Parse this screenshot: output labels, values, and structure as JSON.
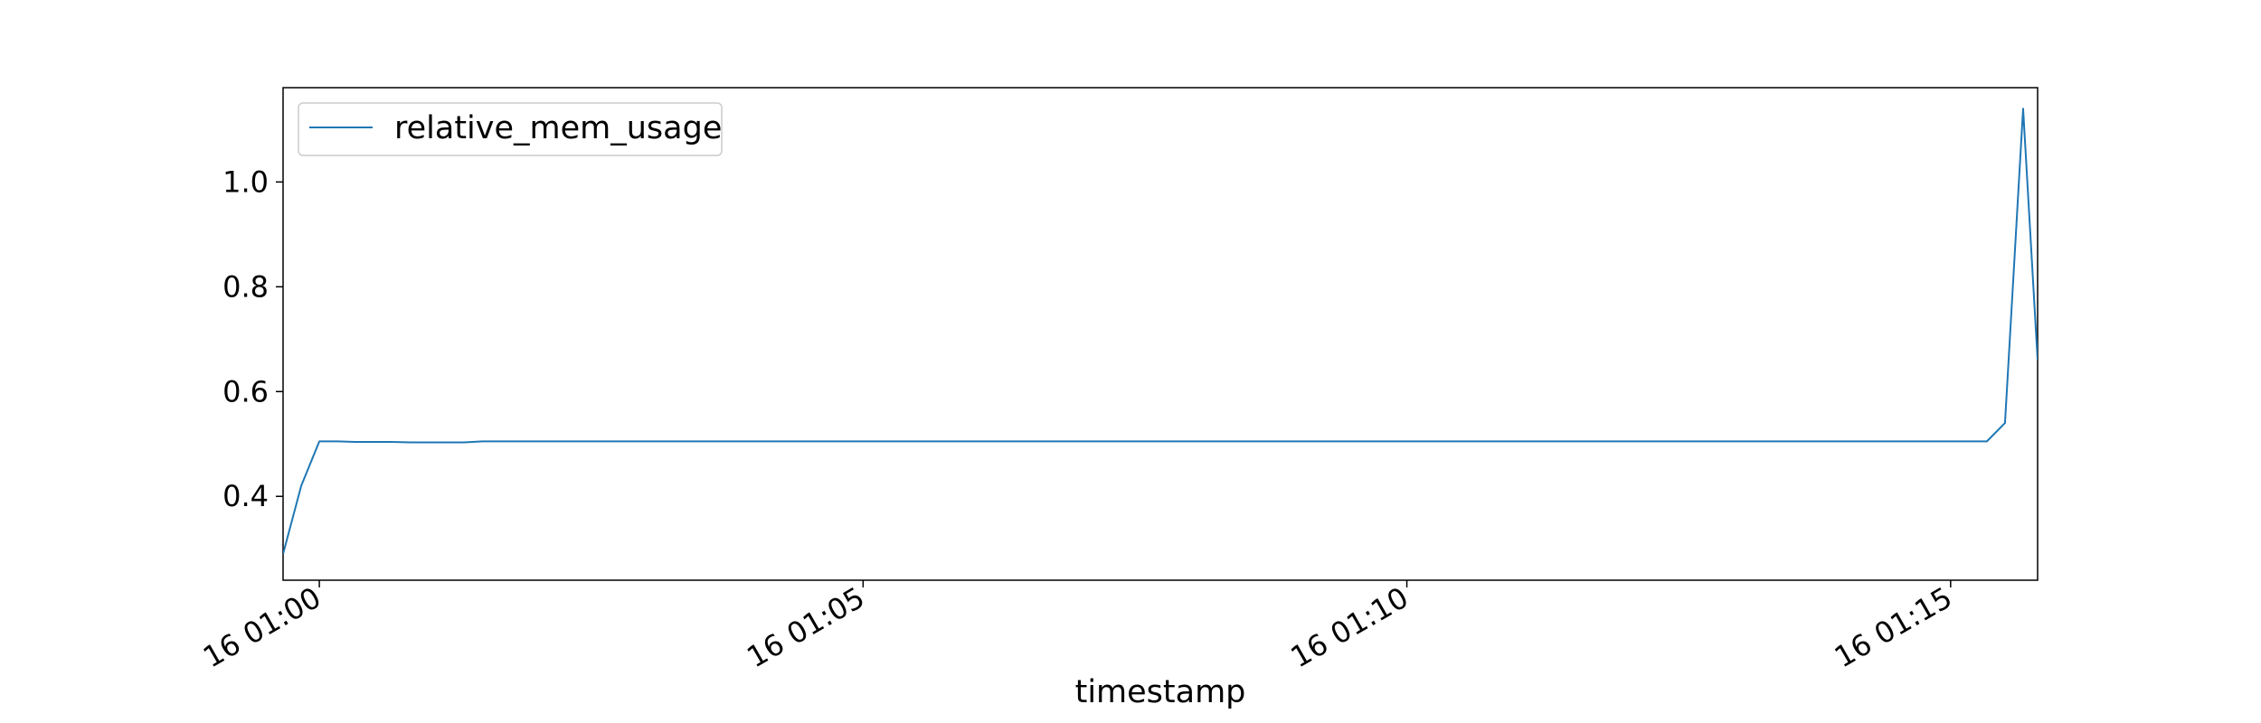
{
  "chart_data": {
    "type": "line",
    "title": "",
    "xlabel": "timestamp",
    "ylabel": "",
    "x_tick_labels": [
      "16 01:00",
      "16 01:05",
      "16 01:10",
      "16 01:15"
    ],
    "x_tick_times": [
      "01:00:00",
      "01:05:00",
      "01:10:00",
      "01:15:00"
    ],
    "y_ticks": [
      0.4,
      0.6,
      0.8,
      1.0
    ],
    "y_tick_labels": [
      "0.4",
      "0.6",
      "0.8",
      "1.0"
    ],
    "xlim": [
      "00:59:40",
      "01:15:48"
    ],
    "ylim": [
      0.24,
      1.18
    ],
    "grid": false,
    "legend_position": "top-left",
    "series": [
      {
        "name": "relative_mem_usage",
        "color": "#1f77b4",
        "x": [
          "00:59:40",
          "00:59:50",
          "01:00:00",
          "01:00:10",
          "01:00:20",
          "01:00:30",
          "01:00:40",
          "01:00:50",
          "01:01:00",
          "01:01:10",
          "01:01:20",
          "01:01:30",
          "01:01:40",
          "01:01:50",
          "01:02:00",
          "01:02:30",
          "01:03:00",
          "01:03:30",
          "01:04:00",
          "01:04:30",
          "01:05:00",
          "01:05:30",
          "01:06:00",
          "01:06:30",
          "01:07:00",
          "01:07:30",
          "01:08:00",
          "01:08:30",
          "01:09:00",
          "01:09:30",
          "01:10:00",
          "01:10:30",
          "01:11:00",
          "01:11:30",
          "01:12:00",
          "01:12:30",
          "01:13:00",
          "01:13:30",
          "01:14:00",
          "01:14:30",
          "01:15:00",
          "01:15:10",
          "01:15:20",
          "01:15:30",
          "01:15:40",
          "01:15:48"
        ],
        "y": [
          0.29,
          0.42,
          0.505,
          0.505,
          0.504,
          0.504,
          0.504,
          0.503,
          0.503,
          0.503,
          0.503,
          0.505,
          0.505,
          0.505,
          0.505,
          0.505,
          0.505,
          0.505,
          0.505,
          0.505,
          0.505,
          0.505,
          0.505,
          0.505,
          0.505,
          0.505,
          0.505,
          0.505,
          0.505,
          0.505,
          0.505,
          0.505,
          0.505,
          0.505,
          0.505,
          0.505,
          0.505,
          0.505,
          0.505,
          0.505,
          0.505,
          0.505,
          0.505,
          0.54,
          1.14,
          0.66
        ]
      }
    ]
  }
}
